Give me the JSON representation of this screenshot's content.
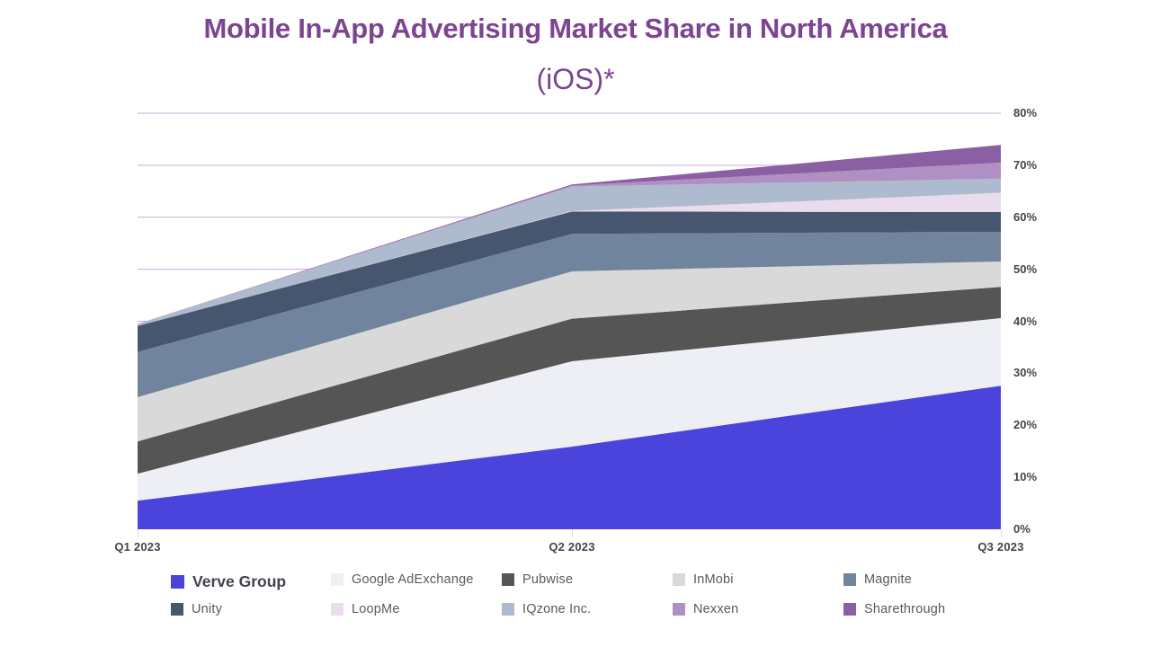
{
  "header": {
    "title": "Mobile In-App Advertising Market Share in North America",
    "subtitle": "(iOS)*",
    "title_color": "#7d4591"
  },
  "chart_data": {
    "type": "area",
    "stacked": true,
    "title": "Mobile In-App Advertising Market Share in North America (iOS)*",
    "x": [
      "Q1 2023",
      "Q2 2023",
      "Q3 2023"
    ],
    "unit": "percent",
    "ylim": [
      0,
      80
    ],
    "yticks": [
      "0%",
      "10%",
      "20%",
      "30%",
      "40%",
      "50%",
      "60%",
      "70%",
      "80%"
    ],
    "gridlines_pct": [
      40,
      50,
      60,
      70,
      80
    ],
    "grid_color": "#cdaad7",
    "legend_position": "bottom",
    "series": [
      {
        "name": "Verve Group",
        "color": "#4b44dc",
        "emphasis": true,
        "values": [
          5.5,
          15.9,
          27.6
        ]
      },
      {
        "name": "Google AdExchange",
        "color": "#edeff5",
        "emphasis": false,
        "values": [
          5.2,
          16.4,
          13.0
        ]
      },
      {
        "name": "Pubwise",
        "color": "#555555",
        "emphasis": false,
        "values": [
          6.2,
          8.2,
          6.0
        ]
      },
      {
        "name": "InMobi",
        "color": "#d9d9d9",
        "emphasis": false,
        "values": [
          8.5,
          9.1,
          4.9
        ]
      },
      {
        "name": "Magnite",
        "color": "#71849e",
        "emphasis": false,
        "values": [
          8.7,
          7.2,
          5.7
        ]
      },
      {
        "name": "Unity",
        "color": "#46566f",
        "emphasis": false,
        "values": [
          5.0,
          4.3,
          3.8
        ]
      },
      {
        "name": "LoopMe",
        "color": "#eadcec",
        "emphasis": false,
        "values": [
          0.0,
          0.1,
          3.7
        ]
      },
      {
        "name": "IQzone Inc.",
        "color": "#aebacd",
        "emphasis": false,
        "values": [
          0.4,
          4.7,
          2.7
        ]
      },
      {
        "name": "Nexxen",
        "color": "#b090c2",
        "emphasis": false,
        "values": [
          0.0,
          0.2,
          3.1
        ]
      },
      {
        "name": "Sharethrough",
        "color": "#8b5fa4",
        "emphasis": false,
        "values": [
          0.0,
          0.2,
          3.4
        ]
      }
    ]
  }
}
